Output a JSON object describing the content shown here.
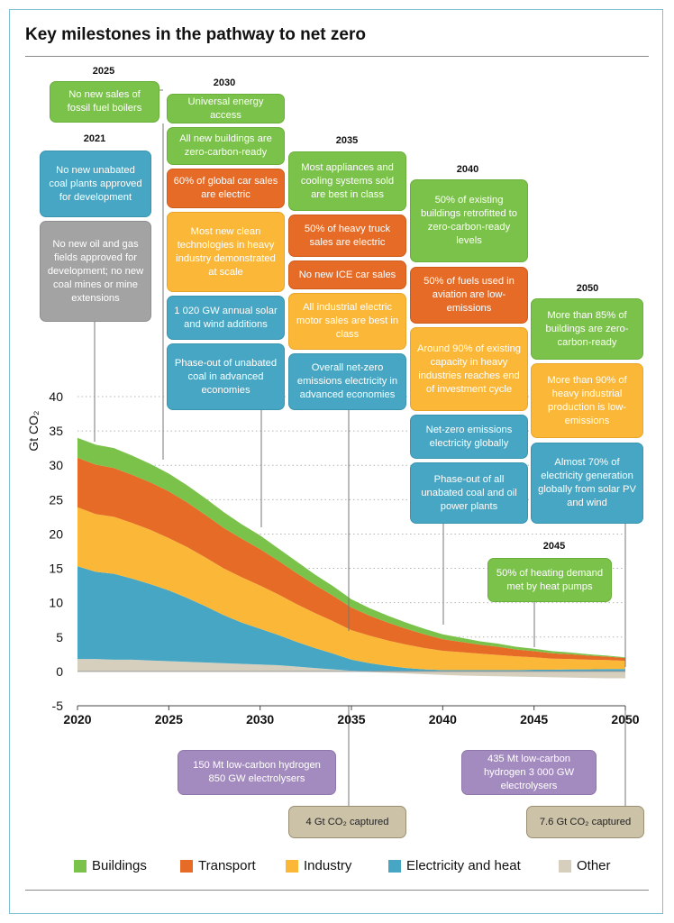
{
  "title": "Key milestones in the pathway to net zero",
  "years_labels": {
    "y2021": "2021",
    "y2025": "2025",
    "y2030": "2030",
    "y2035": "2035",
    "y2040": "2040",
    "y2045": "2045",
    "y2050": "2050"
  },
  "milestones": {
    "m2025_1": "No new sales of fossil fuel boilers",
    "m2021_1": "No new unabated coal plants approved for development",
    "m2021_2": "No new oil and gas fields approved for development; no new coal mines or mine extensions",
    "m2030_1": "Universal energy access",
    "m2030_2": "All new buildings are zero-carbon-ready",
    "m2030_3": "60% of global car sales are electric",
    "m2030_4": "Most new clean technologies in heavy industry demonstrated at scale",
    "m2030_5": "1 020 GW annual solar and wind additions",
    "m2030_6": "Phase-out of unabated coal in advanced economies",
    "m2035_1": "Most appliances and cooling systems sold are best in class",
    "m2035_2": "50% of heavy truck sales are electric",
    "m2035_3": "No new ICE car sales",
    "m2035_4": "All industrial electric motor sales are best in class",
    "m2035_5": "Overall net-zero emissions electricity in advanced economies",
    "m2040_1": "50% of existing buildings retrofitted to zero-carbon-ready levels",
    "m2040_2": "50% of fuels used in aviation are low-emissions",
    "m2040_3": "Around 90% of existing capacity in heavy industries reaches end of investment cycle",
    "m2040_4": "Net-zero emissions electricity globally",
    "m2040_5": "Phase-out of all unabated coal and oil power plants",
    "m2050_1": "More than 85% of buildings are zero-carbon-ready",
    "m2050_2": "More than 90% of heavy industrial production is low-emissions",
    "m2050_3": "Almost 70% of electricity generation globally from solar PV and wind",
    "m2045_1": "50% of heating demand met by heat pumps"
  },
  "below": {
    "h2030": "150 Mt low-carbon hydrogen 850 GW electrolysers",
    "c2035": "4 Gt CO₂ captured",
    "h2050": "435 Mt low-carbon hydrogen 3 000 GW electrolysers",
    "c2050": "7.6 Gt CO₂ captured"
  },
  "colors": {
    "buildings": "#7bc24a",
    "transport": "#e66b26",
    "industry": "#fbb838",
    "electricity": "#46a6c3",
    "other": "#d6cfbd"
  },
  "chart_data": {
    "type": "area",
    "ylabel": "Gt CO₂",
    "xlabel": "",
    "x": [
      2020,
      2021,
      2022,
      2023,
      2024,
      2025,
      2026,
      2027,
      2028,
      2029,
      2030,
      2031,
      2032,
      2033,
      2034,
      2035,
      2036,
      2037,
      2038,
      2039,
      2040,
      2041,
      2042,
      2043,
      2044,
      2045,
      2046,
      2047,
      2048,
      2049,
      2050
    ],
    "xticks": [
      2020,
      2025,
      2030,
      2035,
      2040,
      2045,
      2050
    ],
    "yticks": [
      -5,
      0,
      5,
      10,
      15,
      20,
      25,
      30,
      35,
      40
    ],
    "ylim": [
      -5,
      40
    ],
    "xlim": [
      2020,
      2050
    ],
    "grid": false,
    "series": [
      {
        "name": "Other",
        "values": [
          1.8,
          1.8,
          1.7,
          1.7,
          1.6,
          1.5,
          1.4,
          1.3,
          1.2,
          1.1,
          1.0,
          0.9,
          0.7,
          0.5,
          0.3,
          0.1,
          -0.1,
          -0.2,
          -0.3,
          -0.4,
          -0.5,
          -0.6,
          -0.65,
          -0.7,
          -0.75,
          -0.8,
          -0.85,
          -0.9,
          -0.95,
          -1.0,
          -1.0
        ]
      },
      {
        "name": "Electricity and heat",
        "values": [
          13.5,
          12.7,
          12.5,
          11.8,
          11.1,
          10.3,
          9.3,
          8.2,
          7.0,
          6.0,
          5.2,
          4.4,
          3.6,
          2.9,
          2.3,
          1.6,
          1.2,
          0.8,
          0.5,
          0.3,
          0.2,
          0.2,
          0.2,
          0.2,
          0.2,
          0.25,
          0.25,
          0.3,
          0.3,
          0.35,
          0.35
        ]
      },
      {
        "name": "Industry",
        "values": [
          8.6,
          8.4,
          8.3,
          8.1,
          7.9,
          7.6,
          7.4,
          7.1,
          6.8,
          6.6,
          6.3,
          5.9,
          5.5,
          5.1,
          4.7,
          4.3,
          4.0,
          3.7,
          3.4,
          3.1,
          2.8,
          2.6,
          2.4,
          2.2,
          2.0,
          1.8,
          1.6,
          1.5,
          1.4,
          1.3,
          1.2
        ]
      },
      {
        "name": "Transport",
        "values": [
          7.2,
          7.2,
          7.1,
          7.0,
          6.9,
          6.8,
          6.5,
          6.2,
          5.9,
          5.6,
          5.3,
          4.9,
          4.5,
          4.1,
          3.7,
          3.3,
          2.9,
          2.6,
          2.3,
          2.0,
          1.7,
          1.5,
          1.3,
          1.2,
          1.0,
          0.9,
          0.8,
          0.7,
          0.6,
          0.5,
          0.4
        ]
      },
      {
        "name": "Buildings",
        "values": [
          2.9,
          2.9,
          2.9,
          2.8,
          2.7,
          2.6,
          2.5,
          2.4,
          2.3,
          2.1,
          2.0,
          1.8,
          1.7,
          1.5,
          1.4,
          1.2,
          1.1,
          1.0,
          0.9,
          0.8,
          0.7,
          0.6,
          0.5,
          0.45,
          0.4,
          0.35,
          0.3,
          0.25,
          0.2,
          0.15,
          0.1
        ]
      }
    ],
    "legend_position": "bottom",
    "legend": [
      "Buildings",
      "Transport",
      "Industry",
      "Electricity and heat",
      "Other"
    ],
    "tick_labels_x": [
      "2020",
      "2025",
      "2030",
      "2035",
      "2040",
      "2045",
      "2050"
    ],
    "tick_labels_y": [
      "-5",
      "0",
      "5",
      "10",
      "15",
      "20",
      "25",
      "30",
      "35",
      "40"
    ]
  }
}
